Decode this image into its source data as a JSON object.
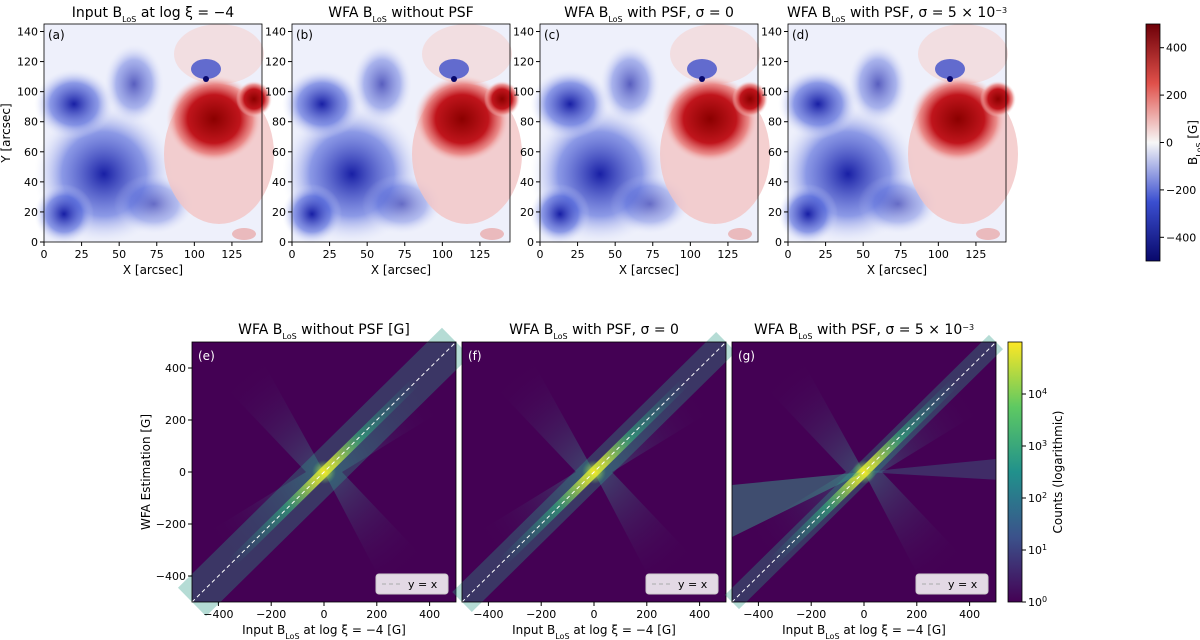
{
  "figure": {
    "top_row_title_prefix": [
      "Input B",
      "WFA B",
      "WFA B",
      "WFA B"
    ],
    "top_row_title_suffix": [
      " at log ξ = −4",
      " without PSF",
      " with PSF, σ = 0",
      " with PSF, σ = 5 × 10"
    ],
    "subscript": "LoS",
    "exponent": "−3"
  },
  "chart_data": [
    {
      "type": "heatmap",
      "panel": "(a)",
      "title": "Input B_LoS at log ξ = −4",
      "xlabel": "X [arcsec]",
      "ylabel": "Y [arcsec]",
      "xlim": [
        0,
        145
      ],
      "ylim": [
        0,
        145
      ],
      "xticks": [
        0,
        25,
        50,
        75,
        100,
        125
      ],
      "yticks": [
        0,
        20,
        40,
        60,
        80,
        100,
        120,
        140
      ]
    },
    {
      "type": "heatmap",
      "panel": "(b)",
      "title": "WFA B_LoS without PSF",
      "xlabel": "X [arcsec]",
      "xlim": [
        0,
        145
      ],
      "ylim": [
        0,
        145
      ],
      "xticks": [
        0,
        25,
        50,
        75,
        100,
        125
      ],
      "yticks": [
        0,
        20,
        40,
        60,
        80,
        100,
        120,
        140
      ]
    },
    {
      "type": "heatmap",
      "panel": "(c)",
      "title": "WFA B_LoS with PSF, σ = 0",
      "xlabel": "X [arcsec]",
      "xlim": [
        0,
        145
      ],
      "ylim": [
        0,
        145
      ],
      "xticks": [
        0,
        25,
        50,
        75,
        100,
        125
      ],
      "yticks": [
        0,
        20,
        40,
        60,
        80,
        100,
        120,
        140
      ]
    },
    {
      "type": "heatmap",
      "panel": "(d)",
      "title": "WFA B_LoS with PSF, σ = 5 × 10^−3",
      "xlabel": "X [arcsec]",
      "xlim": [
        0,
        145
      ],
      "ylim": [
        0,
        145
      ],
      "xticks": [
        0,
        25,
        50,
        75,
        100,
        125
      ],
      "yticks": [
        0,
        20,
        40,
        60,
        80,
        100,
        120,
        140
      ],
      "colorbar": {
        "label": "B_LoS [G]",
        "range": [
          -500,
          500
        ],
        "ticks": [
          400,
          200,
          0,
          -200,
          -400
        ],
        "tick_labels": [
          "400",
          "200",
          "0",
          "−200",
          "−400"
        ]
      }
    },
    {
      "type": "heatmap",
      "panel": "(e)",
      "title": "WFA B_LoS without PSF [G]",
      "xlabel": "Input B_LoS at log ξ = −4 [G]",
      "ylabel": "WFA Estimation [G]",
      "xlim": [
        -500,
        500
      ],
      "ylim": [
        -500,
        500
      ],
      "xticks": [
        -400,
        -200,
        0,
        200,
        400
      ],
      "yticks": [
        400,
        200,
        0,
        -200,
        -400
      ],
      "legend": "y = x"
    },
    {
      "type": "heatmap",
      "panel": "(f)",
      "title": "WFA B_LoS with PSF, σ = 0",
      "xlabel": "Input B_LoS at log ξ = −4 [G]",
      "xlim": [
        -500,
        500
      ],
      "ylim": [
        -500,
        500
      ],
      "xticks": [
        -400,
        -200,
        0,
        200,
        400
      ],
      "legend": "y = x"
    },
    {
      "type": "heatmap",
      "panel": "(g)",
      "title": "WFA B_LoS with PSF, σ = 5 × 10^−3",
      "xlabel": "Input B_LoS at log ξ = −4 [G]",
      "xlim": [
        -500,
        500
      ],
      "ylim": [
        -500,
        500
      ],
      "xticks": [
        -400,
        -200,
        0,
        200,
        400
      ],
      "legend": "y = x",
      "colorbar": {
        "label": "Counts (logarithmic)",
        "scale": "log",
        "range": [
          1,
          100000
        ],
        "ticks": [
          "10^0",
          "10^1",
          "10^2",
          "10^3",
          "10^4"
        ]
      }
    }
  ],
  "labels": {
    "panels_top": [
      "(a)",
      "(b)",
      "(c)",
      "(d)"
    ],
    "panels_bottom": [
      "(e)",
      "(f)",
      "(g)"
    ],
    "x_arcsec": "X [arcsec]",
    "y_arcsec": "Y [arcsec]",
    "cb_top_label": "B",
    "cb_top_unit": " [G]",
    "bottom_titles": [
      "WFA B",
      "WFA B",
      "WFA B"
    ],
    "bottom_title_suffix": [
      " without PSF [G]",
      " with PSF, σ = 0",
      " with PSF, σ = 5 × 10"
    ],
    "bottom_xlabel_a": "Input B",
    "bottom_xlabel_b": " at log ξ = −4 [G]",
    "bottom_ylabel": "WFA Estimation [G]",
    "legend": "y = x",
    "cb_bottom_label": "Counts (logarithmic)",
    "cb_bottom_ticks": [
      "10",
      "10",
      "10",
      "10",
      "10"
    ],
    "cb_bottom_exps": [
      "0",
      "1",
      "2",
      "3",
      "4"
    ]
  },
  "colors": {
    "pos": "#b2182b",
    "neg": "#1a1aa8",
    "viridis_low": "#440154",
    "viridis_mid": "#21918c",
    "viridis_high": "#fde725"
  }
}
